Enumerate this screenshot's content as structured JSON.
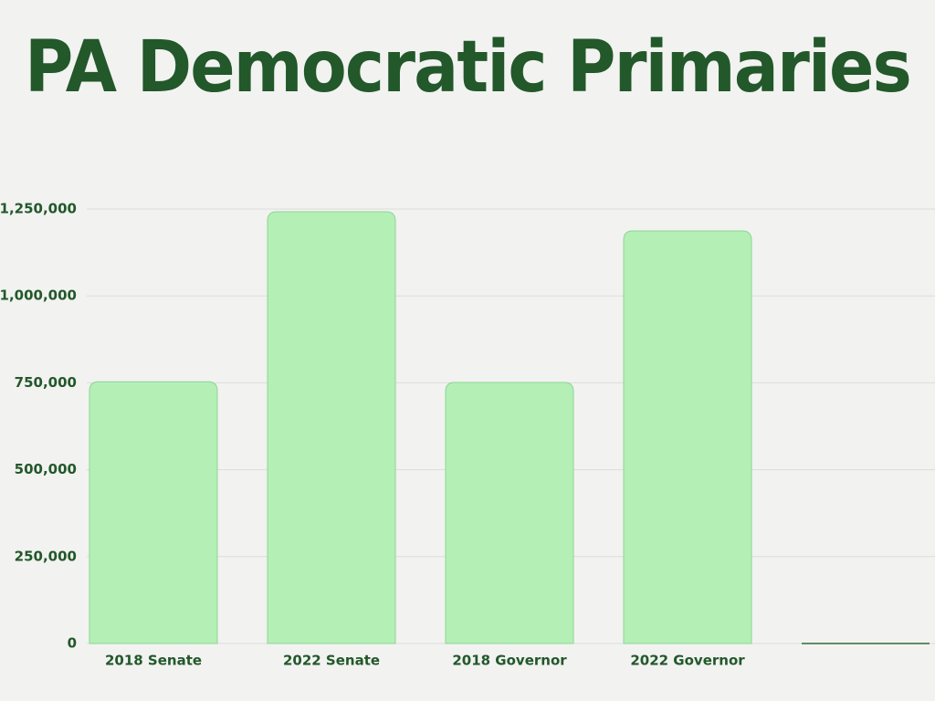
{
  "chart_data": {
    "type": "bar",
    "title": "PA Democratic Primaries",
    "categories": [
      "2018 Senate",
      "2022 Senate",
      "2018 Governor",
      "2022 Governor",
      null
    ],
    "values": [
      753000,
      1242000,
      751000,
      1187000,
      0
    ],
    "color": "#b4f0b6",
    "ylim": [
      0,
      1250000
    ],
    "yticks": [
      0,
      {
        "value": 250000,
        "label": "250,000"
      },
      {
        "value": 500000,
        "label": "500,000"
      },
      {
        "value": 750000,
        "label": "750,000"
      },
      {
        "value": 1000000,
        "label": "1,000,000"
      },
      {
        "value": 1250000,
        "label": "1,250,000"
      }
    ],
    "grid": true
  }
}
